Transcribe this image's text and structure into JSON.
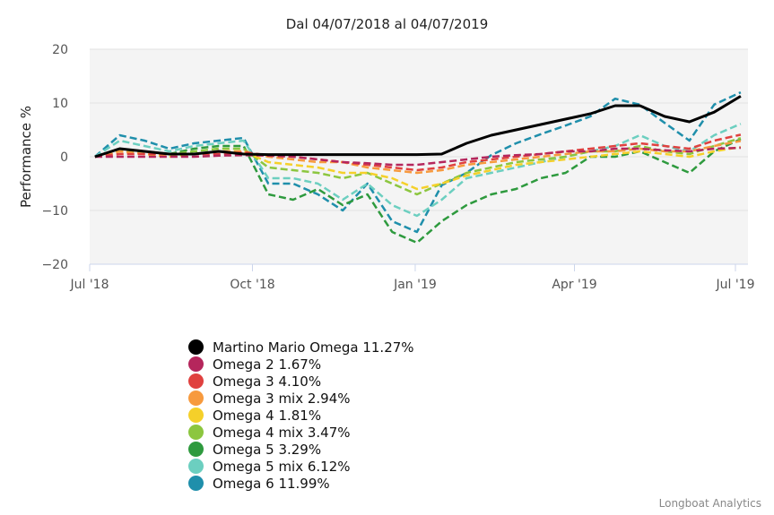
{
  "chart_data": {
    "type": "line",
    "title": "Dal 04/07/2018 al 04/07/2019",
    "ylabel": "Performance %",
    "xlabel": "",
    "ylim": [
      -20,
      20
    ],
    "yticks": [
      20,
      10,
      0,
      -10,
      -20
    ],
    "yticklabels": [
      "20",
      "10",
      "0",
      "−10",
      "−20"
    ],
    "xlim": [
      "2018-07-01",
      "2019-07-05"
    ],
    "xticks": [
      "2018-07-01",
      "2018-10-01",
      "2019-01-01",
      "2019-04-01",
      "2019-07-01"
    ],
    "xticklabels": [
      "Jul '18",
      "Oct '18",
      "Jan '19",
      "Apr '19",
      "Jul '19"
    ],
    "grid": true,
    "legend_placement": "bottom-left",
    "x": [
      "2018-07-04",
      "2018-07-18",
      "2018-08-01",
      "2018-08-15",
      "2018-08-29",
      "2018-09-12",
      "2018-09-26",
      "2018-10-10",
      "2018-10-24",
      "2018-11-07",
      "2018-11-21",
      "2018-12-05",
      "2018-12-19",
      "2019-01-02",
      "2019-01-16",
      "2019-01-30",
      "2019-02-13",
      "2019-02-27",
      "2019-03-13",
      "2019-03-27",
      "2019-04-10",
      "2019-04-24",
      "2019-05-08",
      "2019-05-22",
      "2019-06-05",
      "2019-06-19",
      "2019-07-04"
    ],
    "series": [
      {
        "name": "Martino Mario Omega",
        "legend": "Martino Mario Omega 11.27%",
        "color": "#000000",
        "dashed": false,
        "values": [
          0,
          1.5,
          1,
          0.5,
          0.5,
          1,
          0.5,
          0.4,
          0.4,
          0.4,
          0.4,
          0.4,
          0.4,
          0.4,
          0.5,
          2.5,
          4,
          5,
          6,
          7,
          8,
          9.5,
          9.5,
          7.5,
          6.5,
          8.3,
          11.27
        ]
      },
      {
        "name": "Omega 2",
        "legend": "Omega 2 1.67%",
        "color": "#b5265c",
        "dashed": true,
        "values": [
          0,
          0,
          0,
          0,
          0,
          0.2,
          0.3,
          0.2,
          0,
          -0.5,
          -1,
          -1.2,
          -1.5,
          -1.5,
          -1,
          -0.5,
          0,
          0.3,
          0.5,
          1,
          1,
          1.5,
          1.5,
          1.2,
          1,
          1.5,
          1.67
        ]
      },
      {
        "name": "Omega 3",
        "legend": "Omega 3 4.10%",
        "color": "#e0413f",
        "dashed": true,
        "values": [
          0,
          0.5,
          0.5,
          0.5,
          0.5,
          0.5,
          0.8,
          0.3,
          0,
          -0.5,
          -1,
          -1.5,
          -2,
          -2.5,
          -2,
          -1,
          -0.5,
          0,
          0.5,
          1,
          1.5,
          2,
          2.5,
          2,
          1.5,
          3,
          4.1
        ]
      },
      {
        "name": "Omega 3 mix",
        "legend": "Omega 3 mix 2.94%",
        "color": "#f79a3e",
        "dashed": true,
        "values": [
          0,
          1,
          0.5,
          0.5,
          0.5,
          1,
          1,
          0,
          -0.5,
          -1,
          -1,
          -2,
          -2.5,
          -3,
          -2.5,
          -1.5,
          -1,
          -0.5,
          0,
          0.5,
          1,
          1,
          1.5,
          1,
          1,
          2,
          2.94
        ]
      },
      {
        "name": "Omega 4",
        "legend": "Omega 4 1.81%",
        "color": "#f5d02a",
        "dashed": true,
        "values": [
          0,
          1,
          0.5,
          0,
          0.5,
          1,
          1,
          -1,
          -1.5,
          -2,
          -3,
          -3,
          -4,
          -6,
          -5,
          -3.5,
          -2.5,
          -1.5,
          -1,
          -0.5,
          0,
          0.5,
          1,
          0.5,
          0,
          1,
          1.81
        ]
      },
      {
        "name": "Omega 4 mix",
        "legend": "Omega 4 mix 3.47%",
        "color": "#8cc63f",
        "dashed": true,
        "values": [
          0,
          1.5,
          1,
          0.5,
          1,
          1.5,
          1.5,
          -2,
          -2.5,
          -3,
          -4,
          -3,
          -5,
          -7,
          -5,
          -3,
          -2,
          -1,
          -0.5,
          0,
          1,
          1,
          2,
          1,
          0.5,
          2,
          3.47
        ]
      },
      {
        "name": "Omega 5",
        "legend": "Omega 5 3.29%",
        "color": "#2e9a3e",
        "dashed": true,
        "values": [
          0,
          1,
          1,
          0.5,
          1.5,
          2,
          2,
          -7,
          -8,
          -6,
          -9,
          -7,
          -14,
          -16,
          -12,
          -9,
          -7,
          -6,
          -4,
          -3,
          0,
          0,
          1,
          -1,
          -3,
          1,
          3.29
        ]
      },
      {
        "name": "Omega 5 mix",
        "legend": "Omega 5 mix 6.12%",
        "color": "#6ccfc0",
        "dashed": true,
        "values": [
          0,
          3,
          2,
          1,
          2,
          2.5,
          3,
          -4,
          -4,
          -5,
          -8,
          -5,
          -9,
          -11,
          -8,
          -4,
          -3,
          -2,
          -1,
          0,
          1,
          2,
          4,
          2,
          1,
          4,
          6.12
        ]
      },
      {
        "name": "Omega 6",
        "legend": "Omega 6 11.99%",
        "color": "#1f8fab",
        "dashed": true,
        "values": [
          0,
          4,
          3,
          1.5,
          2.5,
          3,
          3.5,
          -5,
          -5,
          -7,
          -10,
          -5,
          -12,
          -14,
          -5.3,
          -3,
          0.3,
          2.5,
          4.2,
          5.8,
          7.5,
          10.8,
          9.7,
          6.3,
          3,
          9.7,
          11.99
        ]
      }
    ]
  },
  "credits": "Longboat Analytics"
}
